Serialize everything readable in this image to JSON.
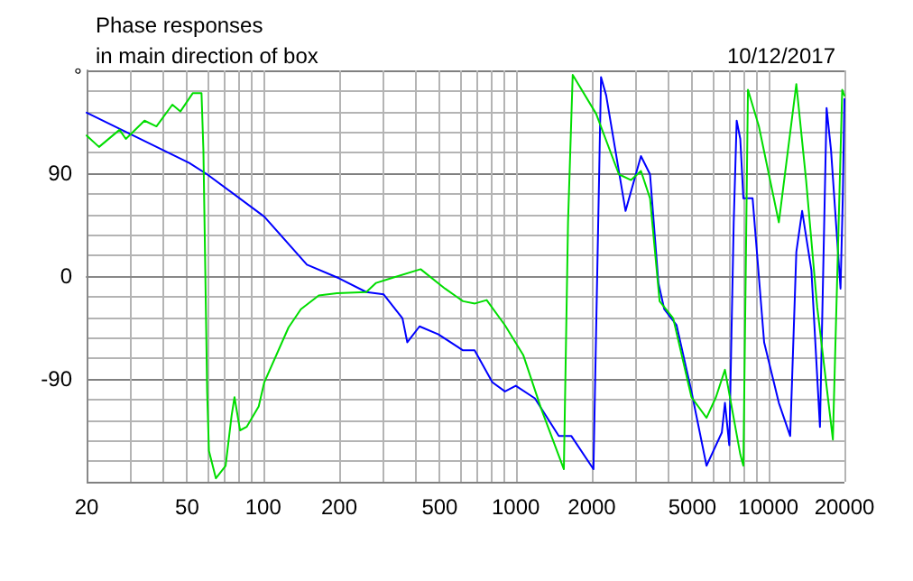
{
  "chart_data": {
    "type": "line",
    "title": "Phase responses",
    "subtitle": "in main direction of box",
    "ylabel": "°",
    "annotations": [
      "10/12/2017"
    ],
    "xlim": [
      20,
      20000
    ],
    "ylim": [
      -180,
      180
    ],
    "xticks": [
      20,
      {
        "value": 30,
        "label": null
      },
      {
        "value": 40,
        "label": null
      },
      50,
      {
        "value": 60,
        "label": null
      },
      {
        "value": 70,
        "label": null
      },
      {
        "value": 80,
        "label": null
      },
      {
        "value": 90,
        "label": null
      },
      100,
      200,
      {
        "value": 300,
        "label": null
      },
      {
        "value": 400,
        "label": null
      },
      500,
      {
        "value": 600,
        "label": null
      },
      {
        "value": 700,
        "label": null
      },
      {
        "value": 800,
        "label": null
      },
      {
        "value": 900,
        "label": null
      },
      1000,
      2000,
      {
        "value": 3000,
        "label": null
      },
      {
        "value": 4000,
        "label": null
      },
      5000,
      {
        "value": 6000,
        "label": null
      },
      {
        "value": 7000,
        "label": null
      },
      {
        "value": 8000,
        "label": null
      },
      {
        "value": 9000,
        "label": null
      },
      10000,
      20000
    ],
    "yticks": [
      {
        "value": -180,
        "label": null
      },
      -90,
      0,
      90,
      {
        "value": 180,
        "label": null
      }
    ],
    "log": "x",
    "grid": true,
    "marker": "none",
    "line_style": "solid",
    "series": [
      {
        "color": "#0000ff",
        "x": [
          20,
          51,
          60,
          101,
          149,
          200,
          256,
          300,
          356,
          372,
          416,
          494,
          618,
          687,
          808,
          906,
          1000,
          1190,
          1480,
          1660,
          2030,
          2175,
          2280,
          2720,
          3130,
          3400,
          3670,
          3870,
          4330,
          4960,
          5690,
          6540,
          6730,
          7000,
          7290,
          7490,
          7740,
          7960,
          8660,
          9620,
          11000,
          12200,
          12900,
          13600,
          14800,
          16000,
          17000,
          17700,
          19300,
          19700,
          20000
        ],
        "values": [
          143,
          99,
          89,
          52,
          10,
          -2,
          -14,
          -16,
          -37,
          -58,
          -44,
          -51,
          -65,
          -65,
          -93,
          -101,
          -96,
          -107,
          -140,
          -140,
          -169,
          174,
          158,
          57,
          105,
          89,
          -6,
          -29,
          -43,
          -101,
          -166,
          -137,
          -111,
          -148,
          47,
          136,
          120,
          68,
          68,
          -58,
          -111,
          -140,
          21,
          57,
          5,
          -132,
          147,
          110,
          -11,
          68,
          155
        ]
      },
      {
        "color": "#00dd00",
        "x": [
          20,
          22.4,
          27,
          28.6,
          33.9,
          37.8,
          43.7,
          47,
          52.6,
          57,
          58,
          59,
          60,
          61,
          65,
          71,
          75,
          77,
          81,
          86,
          96,
          101,
          126,
          141,
          166,
          196,
          256,
          280,
          320,
          420,
          525,
          618,
          689,
          767,
          906,
          1070,
          1260,
          1550,
          1610,
          1680,
          2080,
          2560,
          2860,
          3130,
          3400,
          3710,
          4200,
          4960,
          5690,
          6200,
          6730,
          7740,
          7960,
          8300,
          9170,
          11000,
          12900,
          14100,
          15600,
          18000,
          19600,
          20000
        ],
        "values": [
          123,
          113,
          128,
          120,
          136,
          131,
          150,
          144,
          160,
          160,
          110,
          5,
          -101,
          -153,
          -177,
          -166,
          -122,
          -106,
          -135,
          -132,
          -114,
          -93,
          -45,
          -29,
          -17,
          -15,
          -14,
          -6,
          -2,
          6,
          -11,
          -22,
          -24,
          -21,
          -43,
          -69,
          -116,
          -169,
          47,
          176,
          142,
          89,
          84,
          92,
          68,
          -22,
          -37,
          -106,
          -124,
          -106,
          -82,
          -156,
          -166,
          163,
          131,
          47,
          168,
          84,
          -27,
          -143,
          163,
          158
        ]
      }
    ]
  }
}
